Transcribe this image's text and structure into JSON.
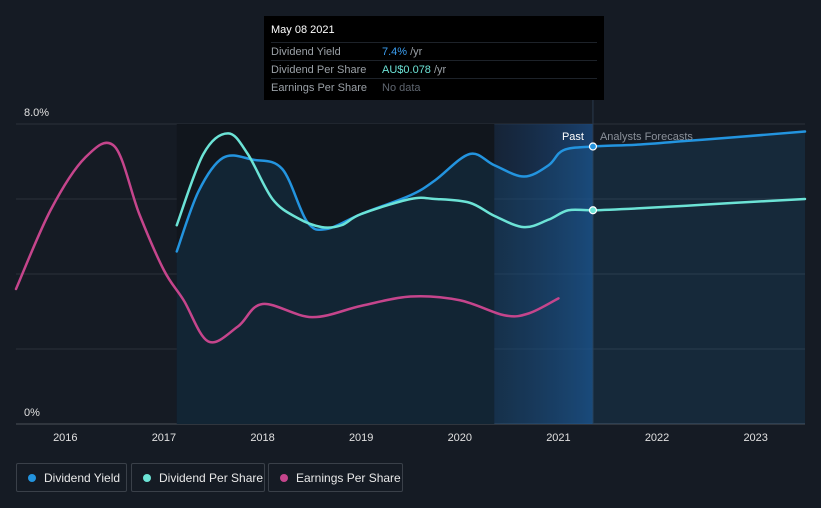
{
  "colors": {
    "background": "#151b24",
    "dividend_yield": "#2394df",
    "dividend_per_share": "#6ce3d6",
    "earnings_per_share": "#c5458c",
    "grid": "#3a4049"
  },
  "tooltip": {
    "date": "May 08 2021",
    "rows": [
      {
        "label": "Dividend Yield",
        "value": "7.4%",
        "unit": "/yr",
        "color": "#3b9ef0"
      },
      {
        "label": "Dividend Per Share",
        "value": "AU$0.078",
        "unit": "/yr",
        "color": "#6ce3d6"
      },
      {
        "label": "Earnings Per Share",
        "value": "No data",
        "unit": "",
        "color": "#5f6670"
      }
    ]
  },
  "legend": [
    {
      "label": "Dividend Yield",
      "color": "#2394df"
    },
    {
      "label": "Dividend Per Share",
      "color": "#6ce3d6"
    },
    {
      "label": "Earnings Per Share",
      "color": "#c5458c"
    }
  ],
  "chart_data": {
    "type": "line",
    "title": "",
    "xlabel": "",
    "ylabel": "",
    "ylim": [
      0,
      8
    ],
    "xlim": [
      2015.5,
      2023.5
    ],
    "y_tick_labels": [
      "0%",
      "8.0%"
    ],
    "x_tick_labels": [
      "2016",
      "2017",
      "2018",
      "2019",
      "2020",
      "2021",
      "2022",
      "2023"
    ],
    "x_ticks": [
      2016,
      2017,
      2018,
      2019,
      2020,
      2021,
      2022,
      2023
    ],
    "past_label": "Past",
    "forecast_label": "Analysts Forecasts",
    "forecast_start": 2021.35,
    "highlight_start": 2020.35,
    "series": [
      {
        "name": "Dividend Yield",
        "unit": "%",
        "points": [
          [
            2017.13,
            4.6
          ],
          [
            2017.35,
            6.2
          ],
          [
            2017.6,
            7.1
          ],
          [
            2017.9,
            7.05
          ],
          [
            2018.2,
            6.8
          ],
          [
            2018.45,
            5.4
          ],
          [
            2018.65,
            5.2
          ],
          [
            2019.0,
            5.6
          ],
          [
            2019.5,
            6.1
          ],
          [
            2019.75,
            6.5
          ],
          [
            2020.1,
            7.2
          ],
          [
            2020.35,
            6.9
          ],
          [
            2020.65,
            6.6
          ],
          [
            2020.9,
            6.9
          ],
          [
            2021.05,
            7.3
          ],
          [
            2021.35,
            7.4
          ],
          [
            2021.8,
            7.45
          ],
          [
            2022.3,
            7.55
          ],
          [
            2022.8,
            7.65
          ],
          [
            2023.5,
            7.8
          ]
        ]
      },
      {
        "name": "Dividend Per Share",
        "unit": "%",
        "points": [
          [
            2017.13,
            5.3
          ],
          [
            2017.4,
            7.2
          ],
          [
            2017.65,
            7.75
          ],
          [
            2017.85,
            7.2
          ],
          [
            2018.1,
            6.0
          ],
          [
            2018.35,
            5.5
          ],
          [
            2018.6,
            5.25
          ],
          [
            2018.8,
            5.3
          ],
          [
            2019.0,
            5.6
          ],
          [
            2019.5,
            6.0
          ],
          [
            2019.75,
            6.0
          ],
          [
            2020.1,
            5.9
          ],
          [
            2020.35,
            5.55
          ],
          [
            2020.65,
            5.25
          ],
          [
            2020.9,
            5.45
          ],
          [
            2021.1,
            5.7
          ],
          [
            2021.35,
            5.7
          ],
          [
            2021.8,
            5.75
          ],
          [
            2022.3,
            5.82
          ],
          [
            2022.8,
            5.9
          ],
          [
            2023.5,
            6.0
          ]
        ]
      },
      {
        "name": "Earnings Per Share",
        "unit": "%",
        "points": [
          [
            2015.5,
            3.6
          ],
          [
            2015.85,
            5.7
          ],
          [
            2016.2,
            7.1
          ],
          [
            2016.5,
            7.4
          ],
          [
            2016.75,
            5.6
          ],
          [
            2017.0,
            4.1
          ],
          [
            2017.2,
            3.3
          ],
          [
            2017.45,
            2.2
          ],
          [
            2017.75,
            2.6
          ],
          [
            2018.0,
            3.2
          ],
          [
            2018.5,
            2.85
          ],
          [
            2019.0,
            3.15
          ],
          [
            2019.5,
            3.4
          ],
          [
            2020.0,
            3.3
          ],
          [
            2020.45,
            2.9
          ],
          [
            2020.7,
            2.95
          ],
          [
            2021.0,
            3.35
          ]
        ]
      }
    ]
  }
}
